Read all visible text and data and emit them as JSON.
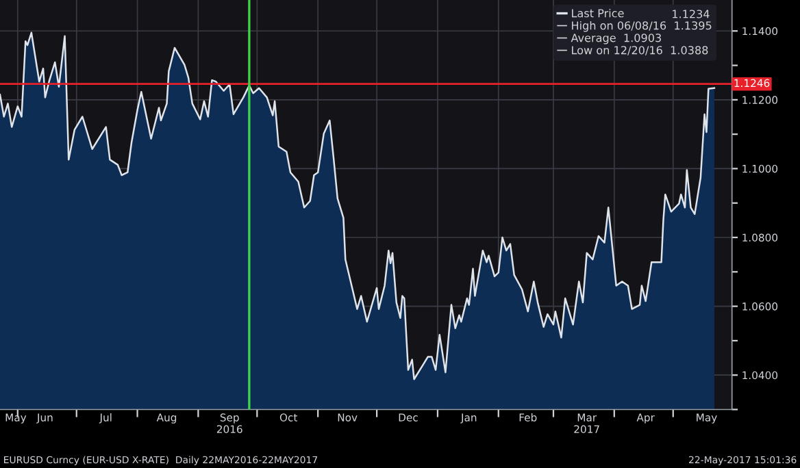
{
  "chart_data": {
    "type": "area",
    "series": [
      {
        "name": "Last Price",
        "color": "#dfe3ea",
        "x": [
          "2016-05-23",
          "2016-05-25",
          "2016-05-27",
          "2016-05-29",
          "2016-06-01",
          "2016-06-03",
          "2016-06-05",
          "2016-06-06",
          "2016-06-08",
          "2016-06-12",
          "2016-06-14",
          "2016-06-15",
          "2016-06-17",
          "2016-06-20",
          "2016-06-22",
          "2016-06-25",
          "2016-06-27",
          "2016-06-30",
          "2016-07-04",
          "2016-07-09",
          "2016-07-16",
          "2016-07-18",
          "2016-07-22",
          "2016-07-24",
          "2016-07-27",
          "2016-07-29",
          "2016-08-01",
          "2016-08-03",
          "2016-08-08",
          "2016-08-12",
          "2016-08-13",
          "2016-08-16",
          "2016-08-17",
          "2016-08-20",
          "2016-08-25",
          "2016-08-27",
          "2016-08-29",
          "2016-09-02",
          "2016-09-04",
          "2016-09-06",
          "2016-09-08",
          "2016-09-10",
          "2016-09-14",
          "2016-09-17",
          "2016-09-19",
          "2016-09-24",
          "2016-09-27",
          "2016-09-29",
          "2016-10-02",
          "2016-10-06",
          "2016-10-09",
          "2016-10-10",
          "2016-10-12",
          "2016-10-16",
          "2016-10-18",
          "2016-10-22",
          "2016-10-25",
          "2016-10-28",
          "2016-10-30",
          "2016-11-01",
          "2016-11-04",
          "2016-11-07",
          "2016-11-09",
          "2016-11-11",
          "2016-11-14",
          "2016-11-15",
          "2016-11-21",
          "2016-11-23",
          "2016-11-26",
          "2016-12-01",
          "2016-12-02",
          "2016-12-05",
          "2016-12-07",
          "2016-12-08",
          "2016-12-09",
          "2016-12-11",
          "2016-12-13",
          "2016-12-14",
          "2016-12-15",
          "2016-12-17",
          "2016-12-19",
          "2016-12-20",
          "2016-12-25",
          "2016-12-27",
          "2016-12-29",
          "2016-12-31",
          "2017-01-02",
          "2017-01-05",
          "2017-01-08",
          "2017-01-10",
          "2017-01-12",
          "2017-01-13",
          "2017-01-16",
          "2017-01-17",
          "2017-01-19",
          "2017-01-20",
          "2017-01-24",
          "2017-01-26",
          "2017-01-27",
          "2017-01-30",
          "2017-02-01",
          "2017-02-03",
          "2017-02-05",
          "2017-02-07",
          "2017-02-09",
          "2017-02-13",
          "2017-02-16",
          "2017-02-19",
          "2017-02-21",
          "2017-02-24",
          "2017-02-26",
          "2017-03-01",
          "2017-03-02",
          "2017-03-05",
          "2017-03-07",
          "2017-03-11",
          "2017-03-14",
          "2017-03-16",
          "2017-03-18",
          "2017-03-21",
          "2017-03-24",
          "2017-03-27",
          "2017-03-29",
          "2017-04-02",
          "2017-04-05",
          "2017-04-08",
          "2017-04-10",
          "2017-04-14",
          "2017-04-15",
          "2017-04-17",
          "2017-04-20",
          "2017-04-25",
          "2017-04-26",
          "2017-04-27",
          "2017-04-30",
          "2017-05-04",
          "2017-05-05",
          "2017-05-07",
          "2017-05-08",
          "2017-05-10",
          "2017-05-12",
          "2017-05-15",
          "2017-05-17",
          "2017-05-18",
          "2017-05-19",
          "2017-05-22"
        ],
        "values": [
          1.1215,
          1.1151,
          1.1189,
          1.1121,
          1.1181,
          1.1151,
          1.137,
          1.1359,
          1.1395,
          1.1253,
          1.1291,
          1.1207,
          1.1253,
          1.1309,
          1.1238,
          1.1385,
          1.1026,
          1.1113,
          1.1151,
          1.1057,
          1.1121,
          1.1026,
          1.1011,
          1.0981,
          1.0989,
          1.1075,
          1.117,
          1.1223,
          1.1087,
          1.1177,
          1.114,
          1.1189,
          1.1283,
          1.1351,
          1.1302,
          1.1264,
          1.1189,
          1.1143,
          1.1196,
          1.1151,
          1.1257,
          1.1253,
          1.1226,
          1.1245,
          1.1158,
          1.1207,
          1.1242,
          1.1219,
          1.1234,
          1.1207,
          1.1155,
          1.1196,
          1.1064,
          1.1049,
          1.0989,
          1.0962,
          1.0887,
          1.0906,
          1.0981,
          1.0989,
          1.1102,
          1.114,
          1.103,
          1.0913,
          1.0857,
          1.0736,
          1.0592,
          1.063,
          1.0555,
          1.0653,
          1.0592,
          1.066,
          1.0762,
          1.0725,
          1.0755,
          1.0611,
          1.0566,
          1.063,
          1.0623,
          1.0415,
          1.0445,
          1.0388,
          1.0434,
          1.0453,
          1.0453,
          1.0415,
          1.0517,
          1.0408,
          1.0604,
          1.0536,
          1.0574,
          1.0555,
          1.0623,
          1.0604,
          1.0709,
          1.063,
          1.0762,
          1.0728,
          1.0747,
          1.0687,
          1.0698,
          1.08,
          1.0762,
          1.0781,
          1.0691,
          1.0649,
          1.0585,
          1.0672,
          1.0611,
          1.054,
          1.0577,
          1.0547,
          1.0585,
          1.0509,
          1.0623,
          1.0547,
          1.0672,
          1.0611,
          1.0755,
          1.0736,
          1.0804,
          1.0785,
          1.0887,
          1.066,
          1.0672,
          1.066,
          1.0592,
          1.0604,
          1.066,
          1.0615,
          1.0728,
          1.0728,
          1.0849,
          1.0925,
          1.0875,
          1.0898,
          1.0925,
          1.0887,
          1.0996,
          1.0887,
          1.0868,
          1.0974,
          1.1158,
          1.1106,
          1.1232,
          1.1234
        ]
      }
    ],
    "xlim": [
      "2016-05-23",
      "2017-05-31"
    ],
    "xticks": [
      {
        "value": "2016-05-31",
        "label": "May"
      },
      {
        "value": "2016-06-15",
        "label": "Jun"
      },
      {
        "value": "2016-07-16",
        "label": "Jul"
      },
      {
        "value": "2016-08-16",
        "label": "Aug"
      },
      {
        "value": "2016-09-17",
        "label": "Sep\n2016"
      },
      {
        "value": "2016-10-17",
        "label": "Oct"
      },
      {
        "value": "2016-11-16",
        "label": "Nov"
      },
      {
        "value": "2016-12-17",
        "label": "Dec"
      },
      {
        "value": "2017-01-17",
        "label": "Jan"
      },
      {
        "value": "2017-02-16",
        "label": "Feb"
      },
      {
        "value": "2017-03-18",
        "label": "Mar\n2017"
      },
      {
        "value": "2017-04-17",
        "label": "Apr"
      },
      {
        "value": "2017-05-18",
        "label": "May"
      },
      {
        "value": "2016-06-01",
        "label": null
      },
      {
        "value": "2016-07-01",
        "label": null
      },
      {
        "value": "2016-08-01",
        "label": null
      },
      {
        "value": "2016-09-01",
        "label": null
      },
      {
        "value": "2016-10-01",
        "label": null
      },
      {
        "value": "2016-11-01",
        "label": null
      },
      {
        "value": "2016-12-01",
        "label": null
      },
      {
        "value": "2017-01-01",
        "label": null
      },
      {
        "value": "2017-02-01",
        "label": null
      },
      {
        "value": "2017-03-01",
        "label": null
      },
      {
        "value": "2017-04-01",
        "label": null
      },
      {
        "value": "2017-05-01",
        "label": null
      }
    ],
    "ylim": [
      1.03,
      1.149
    ],
    "yticks": [
      {
        "value": 1.04,
        "label": "1.0400"
      },
      {
        "value": 1.06,
        "label": "1.0600"
      },
      {
        "value": 1.08,
        "label": "1.0800"
      },
      {
        "value": 1.1,
        "label": "1.1000"
      },
      {
        "value": 1.12,
        "label": "1.1200"
      },
      {
        "value": 1.14,
        "label": "1.1400"
      },
      {
        "value": 1.03,
        "label": null
      },
      {
        "value": 1.05,
        "label": null
      },
      {
        "value": 1.07,
        "label": null
      },
      {
        "value": 1.09,
        "label": null
      },
      {
        "value": 1.11,
        "label": null
      },
      {
        "value": 1.13,
        "label": null
      }
    ],
    "ref_lines": [
      {
        "axis": "y",
        "value": 1.1246,
        "label": "1.1246",
        "color": "#e8202a"
      },
      {
        "axis": "x",
        "value": "2016-09-27",
        "color": "#3fd24a"
      }
    ],
    "grid": true,
    "legend": "top right",
    "annotations": [
      "1.1234",
      "High on 06/08/16  1.1395",
      "Average  1.0903",
      "Low on 12/20/16  1.0388",
      "EURUSD Curncy (EUR-USD X-RATE)  Daily 22MAY2016-22MAY2017",
      "22-May-2017 15:01:36"
    ]
  }
}
